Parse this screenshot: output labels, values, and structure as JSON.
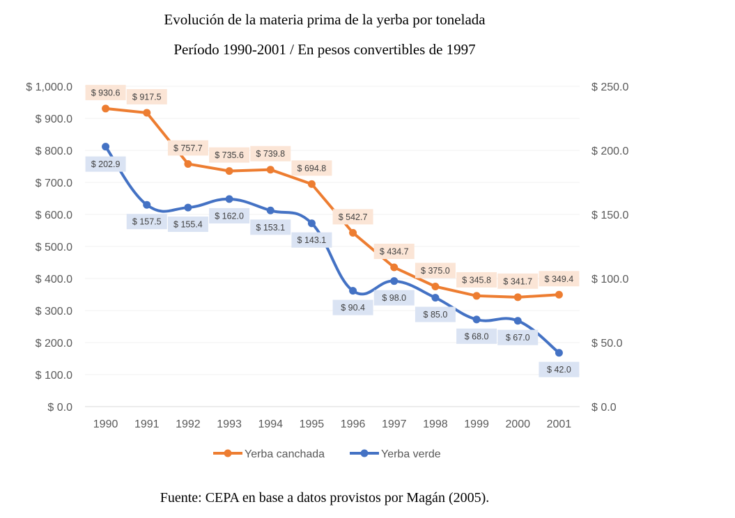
{
  "title": "Evolución de la materia prima de la yerba por tonelada",
  "subtitle": "Período 1990-2001 / En pesos convertibles de 1997",
  "source": "Fuente: CEPA en base a datos provistos por Magán (2005).",
  "colors": {
    "canchada": "#ED7D31",
    "verde": "#4472C4",
    "canchada_label_bg": "#FBE5D6",
    "verde_label_bg": "#DAE3F3",
    "axis_text": "#595959",
    "grid": "#F0F0F0"
  },
  "chart_data": {
    "type": "line",
    "categories": [
      "1990",
      "1991",
      "1992",
      "1993",
      "1994",
      "1995",
      "1996",
      "1997",
      "1998",
      "1999",
      "2000",
      "2001"
    ],
    "y_left": {
      "min": 0,
      "max": 1000,
      "step": 100,
      "ticks": [
        "$ 0.0",
        "$ 100.0",
        "$ 200.0",
        "$ 300.0",
        "$ 400.0",
        "$ 500.0",
        "$ 600.0",
        "$ 700.0",
        "$ 800.0",
        "$ 900.0",
        "$ 1,000.0"
      ]
    },
    "y_right": {
      "min": 0,
      "max": 250,
      "step": 50,
      "ticks": [
        "$ 0.0",
        "$ 50.0",
        "$ 100.0",
        "$ 150.0",
        "$ 200.0",
        "$ 250.0"
      ]
    },
    "series": [
      {
        "name": "Yerba canchada",
        "axis": "left",
        "smooth": false,
        "values": [
          930.6,
          917.5,
          757.7,
          735.6,
          739.8,
          694.8,
          542.7,
          434.7,
          375.0,
          345.8,
          341.7,
          349.4
        ],
        "labels": [
          "$ 930.6",
          "$ 917.5",
          "$ 757.7",
          "$ 735.6",
          "$ 739.8",
          "$ 694.8",
          "$ 542.7",
          "$ 434.7",
          "$ 375.0",
          "$ 345.8",
          "$ 341.7",
          "$ 349.4"
        ]
      },
      {
        "name": "Yerba verde",
        "axis": "right",
        "smooth": true,
        "values": [
          202.9,
          157.5,
          155.4,
          162.0,
          153.1,
          143.1,
          90.4,
          98.0,
          85.0,
          68.0,
          67.0,
          42.0
        ],
        "labels": [
          "$ 202.9",
          "$ 157.5",
          "$ 155.4",
          "$ 162.0",
          "$ 153.1",
          "$ 143.1",
          "$ 90.4",
          "$ 98.0",
          "$ 85.0",
          "$ 68.0",
          "$ 67.0",
          "$ 42.0"
        ]
      }
    ],
    "legend": "bottom",
    "grid": true
  }
}
